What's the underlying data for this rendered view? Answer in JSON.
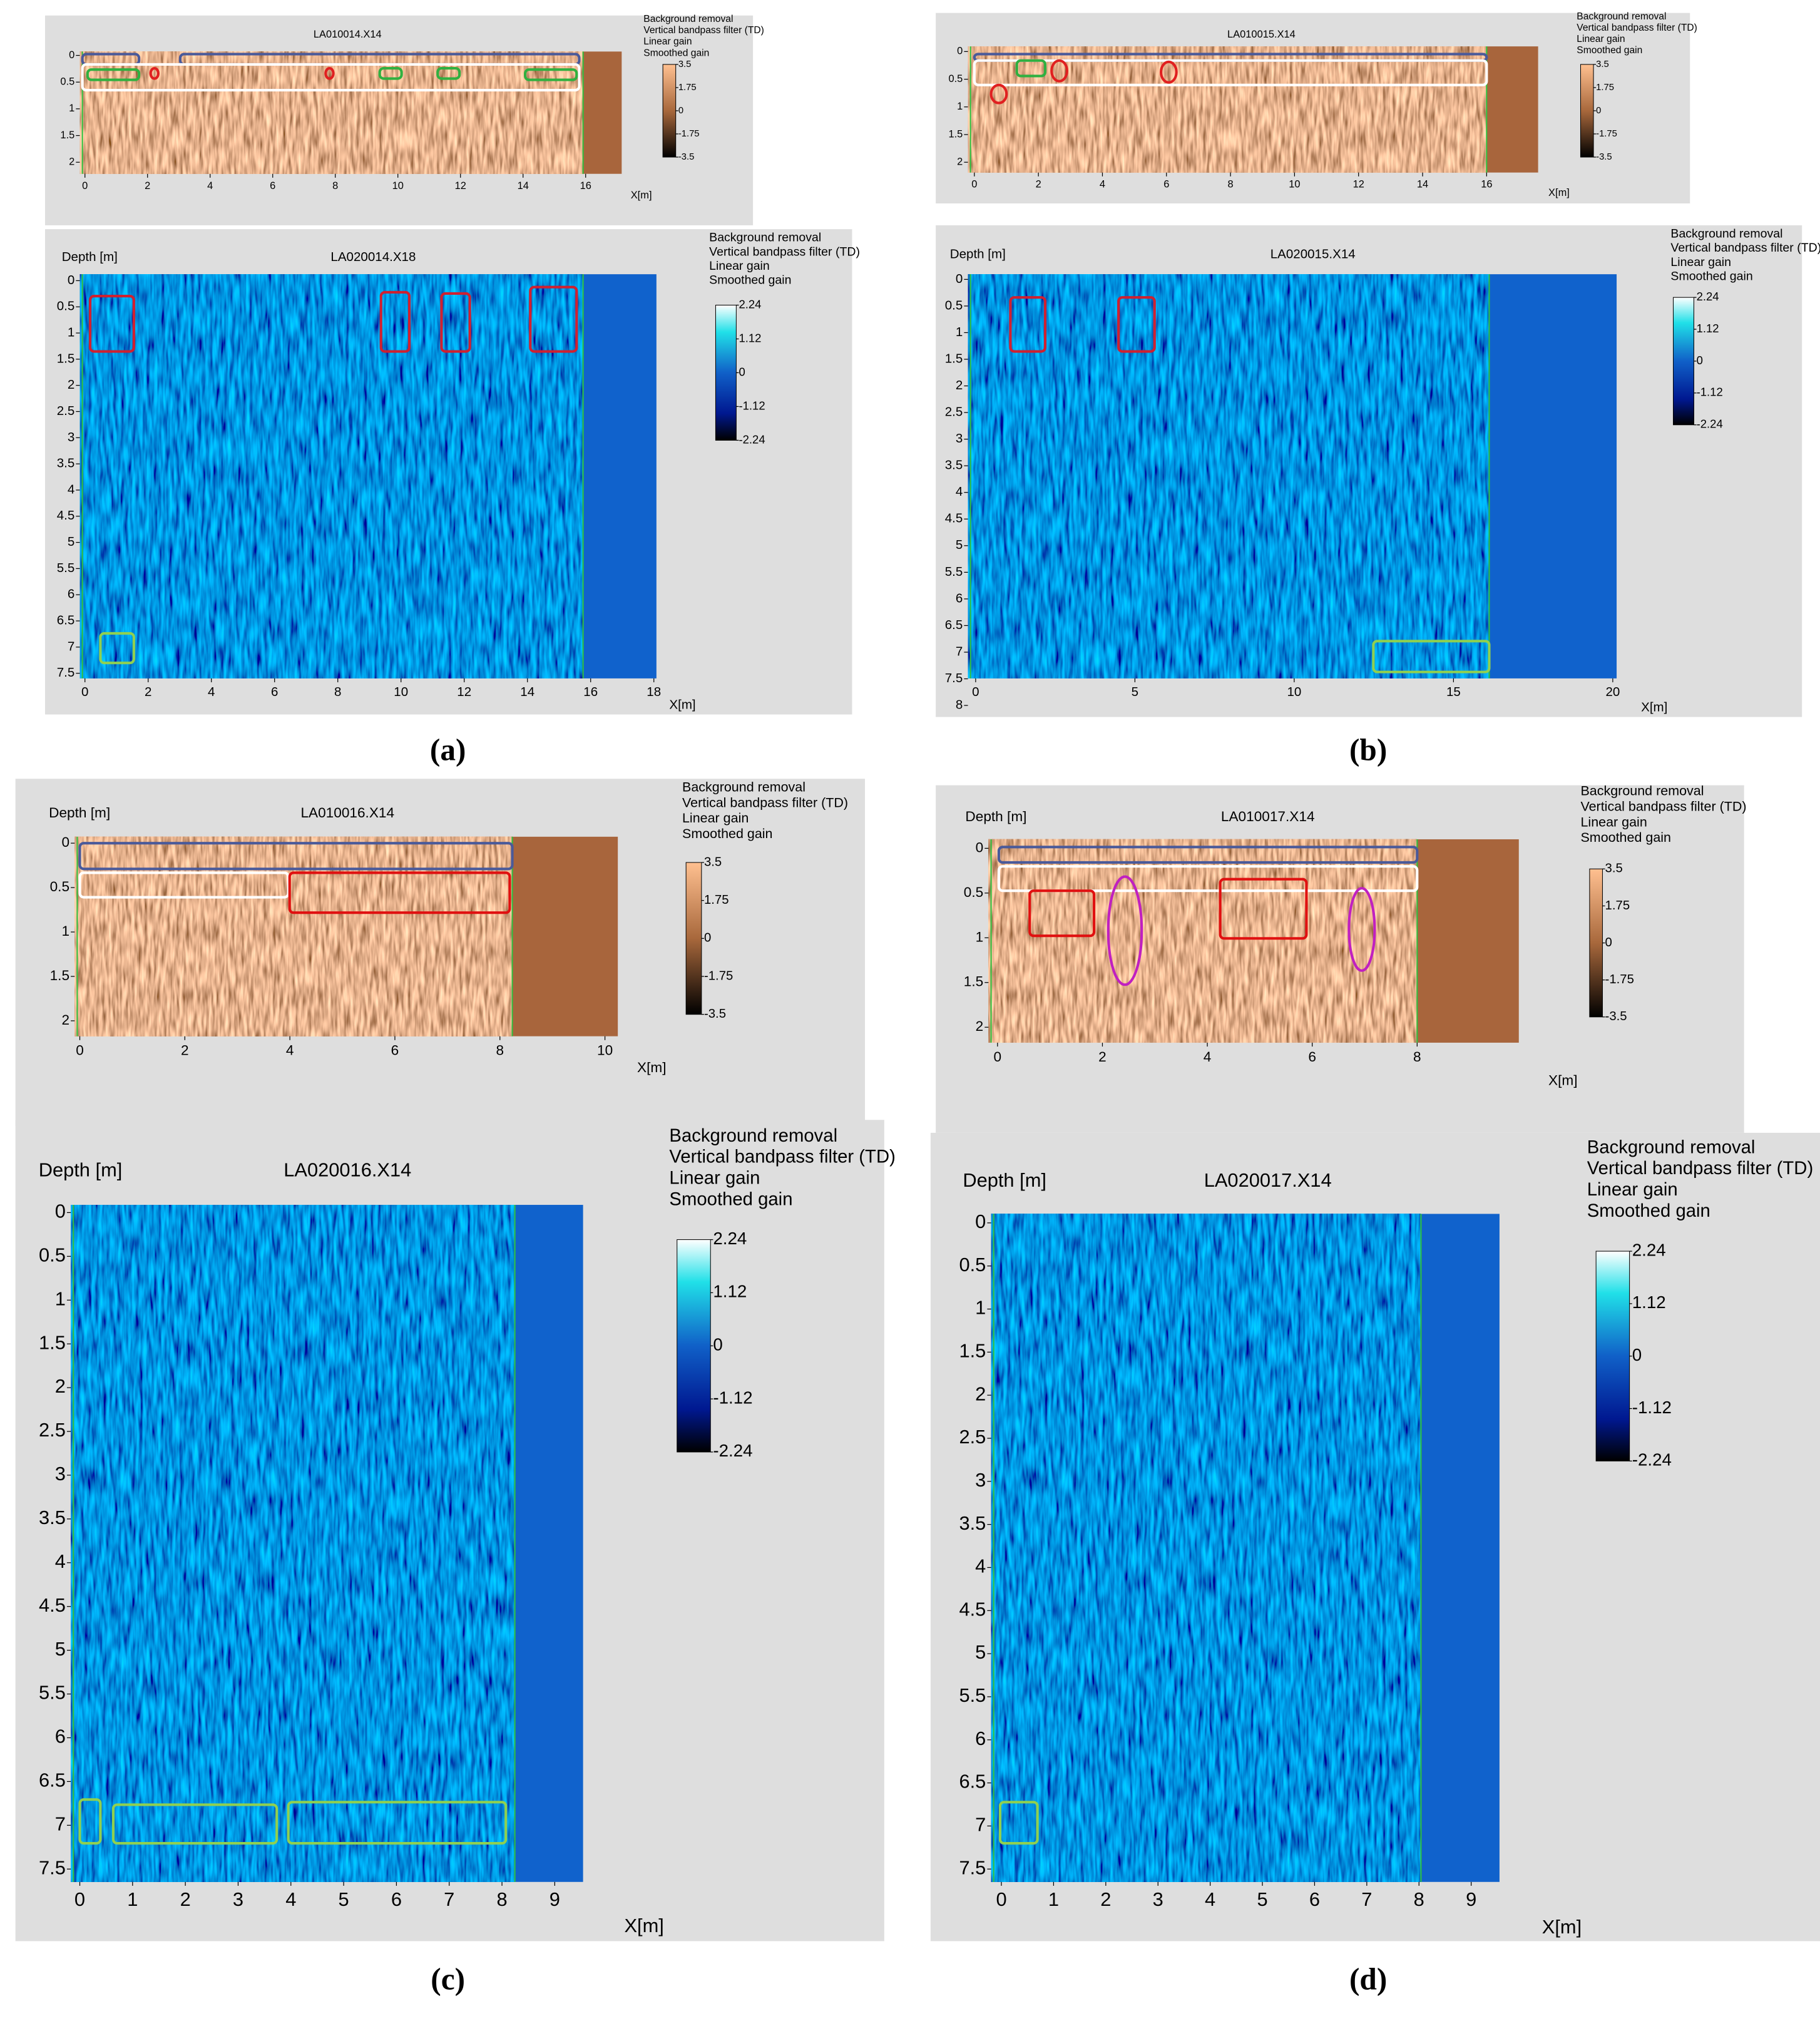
{
  "figures": [
    {
      "caption": "(a)",
      "panels": [
        {
          "title": "LA010014.X14",
          "x_label": "X[m]",
          "filters": [
            "Background removal",
            "Vertical bandpass filter (TD)",
            "Linear gain",
            "Smoothed gain"
          ],
          "colorbar": [
            3.5,
            1.75,
            0,
            -1.75,
            -3.5
          ],
          "yticks": [
            0,
            0.5,
            1,
            1.5,
            2
          ],
          "xticks": [
            0,
            2,
            4,
            6,
            8,
            10,
            12,
            14,
            16
          ]
        },
        {
          "title": "LA020014.X18",
          "depth_label": "Depth [m]",
          "x_label": "X[m]",
          "filters": [
            "Background removal",
            "Vertical bandpass filter (TD)",
            "Linear gain",
            "Smoothed gain"
          ],
          "colorbar": [
            2.24,
            1.12,
            0,
            -1.12,
            -2.24
          ],
          "yticks": [
            0,
            0.5,
            1,
            1.5,
            2,
            2.5,
            3,
            3.5,
            4,
            4.5,
            5,
            5.5,
            6,
            6.5,
            7,
            7.5
          ],
          "xticks": [
            0,
            2,
            4,
            6,
            8,
            10,
            12,
            14,
            16,
            18
          ]
        }
      ]
    },
    {
      "caption": "(b)",
      "panels": [
        {
          "title": "LA010015.X14",
          "x_label": "X[m]",
          "filters": [
            "Background removal",
            "Vertical bandpass filter (TD)",
            "Linear gain",
            "Smoothed gain"
          ],
          "colorbar": [
            3.5,
            1.75,
            0,
            -1.75,
            -3.5
          ],
          "yticks": [
            0,
            0.5,
            1,
            1.5,
            2
          ],
          "xticks": [
            0,
            2,
            4,
            6,
            8,
            10,
            12,
            14,
            16
          ]
        },
        {
          "title": "LA020015.X14",
          "depth_label": "Depth [m]",
          "x_label": "X[m]",
          "filters": [
            "Background removal",
            "Vertical bandpass filter (TD)",
            "Linear gain",
            "Smoothed gain"
          ],
          "colorbar": [
            2.24,
            1.12,
            0,
            -1.12,
            -2.24
          ],
          "yticks": [
            0,
            0.5,
            1,
            1.5,
            2,
            2.5,
            3,
            3.5,
            4,
            4.5,
            5,
            5.5,
            6,
            6.5,
            7,
            7.5,
            8
          ],
          "xticks": [
            0,
            5,
            10,
            15,
            20
          ]
        }
      ]
    },
    {
      "caption": "(c)",
      "panels": [
        {
          "title": "LA010016.X14",
          "depth_label": "Depth [m]",
          "x_label": "X[m]",
          "filters": [
            "Background removal",
            "Vertical bandpass filter (TD)",
            "Linear gain",
            "Smoothed gain"
          ],
          "colorbar": [
            3.5,
            1.75,
            0,
            -1.75,
            -3.5
          ],
          "yticks": [
            0,
            0.5,
            1,
            1.5,
            2
          ],
          "xticks": [
            0,
            2,
            4,
            6,
            8,
            10
          ]
        },
        {
          "title": "LA020016.X14",
          "depth_label": "Depth [m]",
          "x_label": "X[m]",
          "filters": [
            "Background removal",
            "Vertical bandpass filter (TD)",
            "Linear gain",
            "Smoothed gain"
          ],
          "colorbar": [
            2.24,
            1.12,
            0,
            -1.12,
            -2.24
          ],
          "yticks": [
            0,
            0.5,
            1,
            1.5,
            2,
            2.5,
            3,
            3.5,
            4,
            4.5,
            5,
            5.5,
            6,
            6.5,
            7,
            7.5
          ],
          "xticks": [
            0,
            1,
            2,
            3,
            4,
            5,
            6,
            7,
            8,
            9
          ]
        }
      ]
    },
    {
      "caption": "(d)",
      "panels": [
        {
          "title": "LA010017.X14",
          "depth_label": "Depth [m]",
          "x_label": "X[m]",
          "filters": [
            "Background removal",
            "Vertical bandpass filter (TD)",
            "Linear gain",
            "Smoothed gain"
          ],
          "colorbar": [
            3.5,
            1.75,
            0,
            -1.75,
            -3.5
          ],
          "yticks": [
            0,
            0.5,
            1,
            1.5,
            2
          ],
          "xticks": [
            0,
            2,
            4,
            6,
            8
          ]
        },
        {
          "title": "LA020017.X14",
          "depth_label": "Depth [m]",
          "x_label": "X[m]",
          "filters": [
            "Background removal",
            "Vertical bandpass filter (TD)",
            "Linear gain",
            "Smoothed gain"
          ],
          "colorbar": [
            2.24,
            1.12,
            0,
            -1.12,
            -2.24
          ],
          "yticks": [
            0,
            0.5,
            1,
            1.5,
            2,
            2.5,
            3,
            3.5,
            4,
            4.5,
            5,
            5.5,
            6,
            6.5,
            7,
            7.5
          ],
          "xticks": [
            0,
            1,
            2,
            3,
            4,
            5,
            6,
            7,
            8,
            9
          ]
        }
      ]
    }
  ]
}
